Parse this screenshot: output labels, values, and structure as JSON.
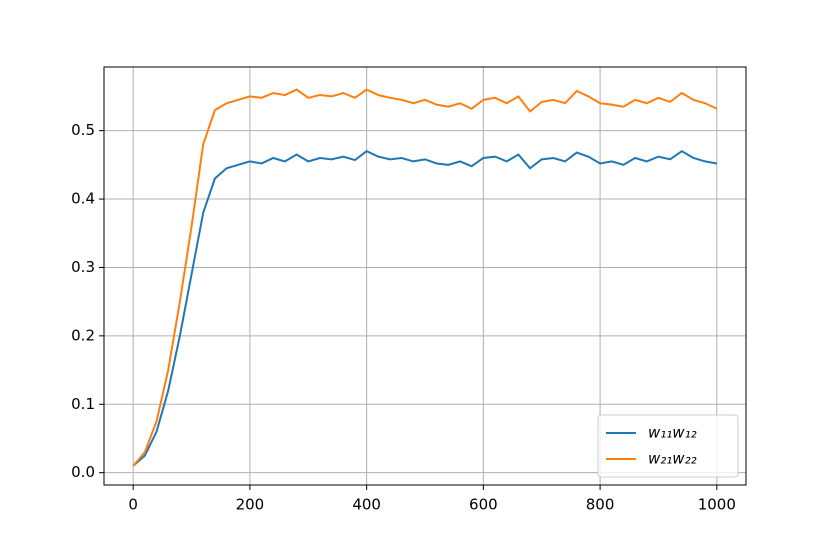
{
  "chart_data": {
    "type": "line",
    "x": [
      0,
      20,
      40,
      60,
      80,
      100,
      120,
      140,
      160,
      180,
      200,
      220,
      240,
      260,
      280,
      300,
      320,
      340,
      360,
      380,
      400,
      420,
      440,
      460,
      480,
      500,
      520,
      540,
      560,
      580,
      600,
      620,
      640,
      660,
      680,
      700,
      720,
      740,
      760,
      780,
      800,
      820,
      840,
      860,
      880,
      900,
      920,
      940,
      960,
      980,
      1000
    ],
    "series": [
      {
        "name": "w₁₁w₁₂",
        "color": "#1f77b4",
        "values": [
          0.01,
          0.025,
          0.06,
          0.12,
          0.2,
          0.29,
          0.38,
          0.43,
          0.445,
          0.45,
          0.455,
          0.452,
          0.46,
          0.455,
          0.465,
          0.455,
          0.46,
          0.458,
          0.462,
          0.457,
          0.47,
          0.462,
          0.458,
          0.46,
          0.455,
          0.458,
          0.452,
          0.45,
          0.455,
          0.448,
          0.46,
          0.462,
          0.455,
          0.465,
          0.445,
          0.458,
          0.46,
          0.455,
          0.468,
          0.462,
          0.452,
          0.455,
          0.45,
          0.46,
          0.455,
          0.462,
          0.458,
          0.47,
          0.46,
          0.455,
          0.452
        ]
      },
      {
        "name": "w₂₁w₂₂",
        "color": "#ff7f0e",
        "values": [
          0.01,
          0.03,
          0.075,
          0.15,
          0.25,
          0.36,
          0.48,
          0.53,
          0.54,
          0.545,
          0.55,
          0.548,
          0.555,
          0.552,
          0.56,
          0.548,
          0.552,
          0.55,
          0.555,
          0.548,
          0.56,
          0.552,
          0.548,
          0.545,
          0.54,
          0.545,
          0.538,
          0.535,
          0.54,
          0.532,
          0.545,
          0.548,
          0.54,
          0.55,
          0.528,
          0.542,
          0.545,
          0.54,
          0.558,
          0.55,
          0.54,
          0.538,
          0.535,
          0.545,
          0.54,
          0.548,
          0.542,
          0.555,
          0.545,
          0.54,
          0.532
        ]
      }
    ],
    "xlim": [
      -50,
      1050
    ],
    "xticks": [
      0,
      200,
      400,
      600,
      800,
      1000
    ],
    "ylim": [
      -0.018,
      0.593
    ],
    "yticks": [
      {
        "value": 0,
        "label": "0.0"
      },
      0.1,
      0.2,
      0.3,
      0.4,
      0.5
    ],
    "grid": true,
    "legend": "lower right"
  }
}
